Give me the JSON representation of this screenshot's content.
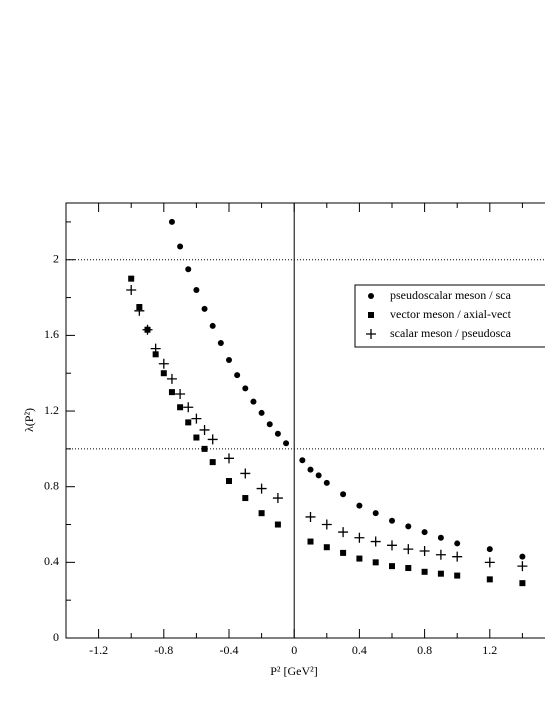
{
  "chart_data": {
    "type": "scatter",
    "xlabel": "P² [GeV²]",
    "ylabel": "λ(P²)",
    "xlim": [
      -1.4,
      1.6
    ],
    "ylim": [
      0,
      2.3
    ],
    "xticks": [
      -1.2,
      -0.8,
      -0.4,
      0,
      0.4,
      0.8,
      1.2
    ],
    "yticks": [
      0,
      0.4,
      0.8,
      1.2,
      1.6,
      2
    ],
    "xminorticks": [
      -1.0,
      -0.6,
      -0.2,
      0.2,
      0.6,
      1.0,
      1.4
    ],
    "yminorticks": [
      0.2,
      0.6,
      1.0,
      1.4,
      1.8,
      2.2
    ],
    "hlines": [
      1,
      2
    ],
    "vlines": [
      0
    ],
    "series": [
      {
        "name": "pseudoscalar meson / sca",
        "color": "#000000",
        "marker": "circle",
        "x": [
          -0.75,
          -0.7,
          -0.65,
          -0.6,
          -0.55,
          -0.5,
          -0.45,
          -0.4,
          -0.35,
          -0.3,
          -0.25,
          -0.2,
          -0.15,
          -0.1,
          -0.05,
          0.05,
          0.1,
          0.15,
          0.2,
          0.3,
          0.4,
          0.5,
          0.6,
          0.7,
          0.8,
          0.9,
          1.0,
          1.2,
          1.4
        ],
        "values": [
          2.2,
          2.07,
          1.95,
          1.84,
          1.74,
          1.65,
          1.56,
          1.47,
          1.39,
          1.32,
          1.25,
          1.19,
          1.13,
          1.08,
          1.03,
          0.94,
          0.89,
          0.86,
          0.82,
          0.76,
          0.7,
          0.66,
          0.62,
          0.59,
          0.56,
          0.53,
          0.5,
          0.47,
          0.43
        ]
      },
      {
        "name": "vector meson / axial-vect",
        "color": "#000000",
        "marker": "square",
        "x": [
          -1.0,
          -0.95,
          -0.9,
          -0.85,
          -0.8,
          -0.75,
          -0.7,
          -0.65,
          -0.6,
          -0.55,
          -0.5,
          -0.4,
          -0.3,
          -0.2,
          -0.1,
          0.1,
          0.2,
          0.3,
          0.4,
          0.5,
          0.6,
          0.7,
          0.8,
          0.9,
          1.0,
          1.2,
          1.4
        ],
        "values": [
          1.9,
          1.75,
          1.63,
          1.5,
          1.4,
          1.3,
          1.22,
          1.14,
          1.06,
          1.0,
          0.93,
          0.83,
          0.74,
          0.66,
          0.6,
          0.51,
          0.48,
          0.45,
          0.42,
          0.4,
          0.38,
          0.37,
          0.35,
          0.34,
          0.33,
          0.31,
          0.29
        ]
      },
      {
        "name": "scalar meson / pseudosca",
        "color": "#000000",
        "marker": "plus",
        "x": [
          -1.0,
          -0.95,
          -0.9,
          -0.85,
          -0.8,
          -0.75,
          -0.7,
          -0.65,
          -0.6,
          -0.55,
          -0.5,
          -0.4,
          -0.3,
          -0.2,
          -0.1,
          0.1,
          0.2,
          0.3,
          0.4,
          0.5,
          0.6,
          0.7,
          0.8,
          0.9,
          1.0,
          1.2,
          1.4
        ],
        "values": [
          1.84,
          1.73,
          1.63,
          1.53,
          1.45,
          1.37,
          1.29,
          1.22,
          1.16,
          1.1,
          1.05,
          0.95,
          0.87,
          0.79,
          0.74,
          0.64,
          0.6,
          0.56,
          0.53,
          0.51,
          0.49,
          0.47,
          0.46,
          0.44,
          0.43,
          0.4,
          0.38
        ]
      }
    ]
  }
}
